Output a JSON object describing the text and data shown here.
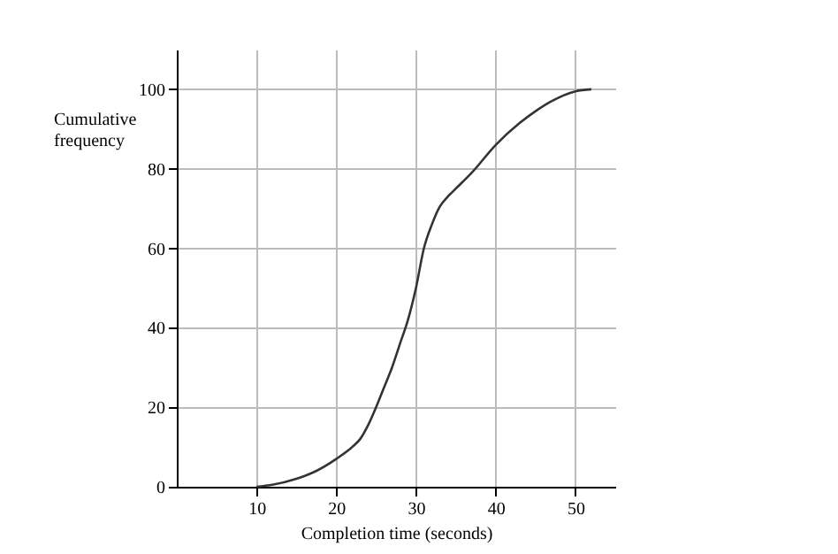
{
  "chart_data": {
    "type": "line",
    "xlabel": "Completion time (seconds)",
    "ylabel": "Cumulative\nfrequency",
    "xlim": [
      0,
      55
    ],
    "ylim": [
      0,
      110
    ],
    "xticks": [
      10,
      20,
      30,
      40,
      50
    ],
    "yticks": [
      0,
      20,
      40,
      60,
      80,
      100
    ],
    "grid": true,
    "series": [
      {
        "color": "#333333",
        "x": [
          10,
          12,
          15,
          17,
          20,
          22,
          23,
          24,
          25,
          26,
          27,
          28,
          29,
          30,
          31,
          32,
          33,
          34,
          35,
          37,
          40,
          43,
          45,
          47,
          50,
          52
        ],
        "values": [
          0,
          0.5,
          2,
          3.5,
          7,
          10,
          12,
          15.5,
          20,
          25,
          30,
          36,
          42,
          50,
          60,
          66,
          70.5,
          73,
          75,
          79,
          86,
          91.5,
          94.5,
          97,
          99.5,
          100
        ]
      }
    ]
  }
}
